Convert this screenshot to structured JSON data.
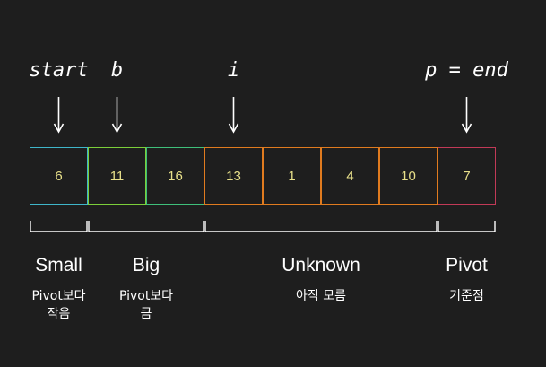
{
  "pointers": [
    {
      "label": "start",
      "cell": 0
    },
    {
      "label": "b",
      "cell": 1
    },
    {
      "label": "i",
      "cell": 3
    },
    {
      "label": "p = end",
      "cell": 7
    }
  ],
  "cells": [
    {
      "value": "6",
      "color": "#3fb6c9"
    },
    {
      "value": "11",
      "color": "#7ccf3a"
    },
    {
      "value": "16",
      "color": "#3fbf7a"
    },
    {
      "value": "13",
      "color": "#e07b1f"
    },
    {
      "value": "1",
      "color": "#e07b1f"
    },
    {
      "value": "4",
      "color": "#e07b1f"
    },
    {
      "value": "10",
      "color": "#e07b1f"
    },
    {
      "value": "7",
      "color": "#c23a57"
    }
  ],
  "groups": [
    {
      "title": "Small",
      "subtitle_lines": [
        "Pivot보다",
        "작음"
      ],
      "from": 0,
      "to": 0
    },
    {
      "title": "Big",
      "subtitle_lines": [
        "Pivot보다",
        "큼"
      ],
      "from": 1,
      "to": 2
    },
    {
      "title": "Unknown",
      "subtitle_lines": [
        "아직 모름"
      ],
      "from": 3,
      "to": 6
    },
    {
      "title": "Pivot",
      "subtitle_lines": [
        "기준점"
      ],
      "from": 7,
      "to": 7
    }
  ],
  "colors": {
    "background": "#1e1e1e",
    "text": "#ffffff",
    "cell_text": "#e8e08a"
  }
}
